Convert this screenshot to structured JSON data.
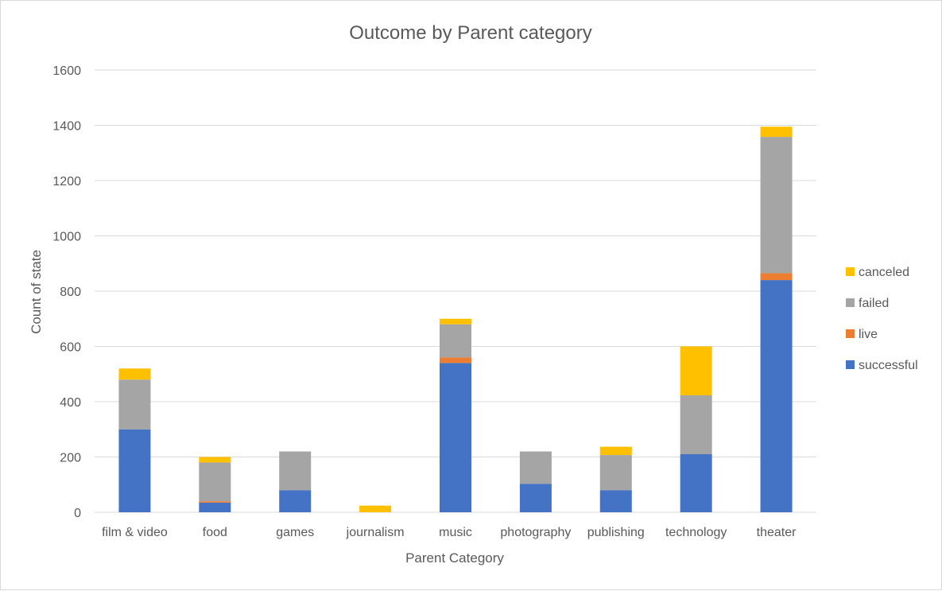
{
  "chart_data": {
    "type": "bar",
    "stacked": true,
    "title": "Outcome by Parent category",
    "xlabel": "Parent Category",
    "ylabel": "Count of state",
    "ylim": [
      0,
      1600
    ],
    "ytick_step": 200,
    "grid": true,
    "legend_position": "right",
    "categories": [
      "film & video",
      "food",
      "games",
      "journalism",
      "music",
      "photography",
      "publishing",
      "technology",
      "theater"
    ],
    "series": [
      {
        "name": "successful",
        "color": "#4472C4",
        "values": [
          300,
          35,
          80,
          0,
          540,
          103,
          80,
          210,
          840
        ]
      },
      {
        "name": "live",
        "color": "#ED7D31",
        "values": [
          0,
          5,
          0,
          0,
          20,
          0,
          0,
          0,
          25
        ]
      },
      {
        "name": "failed",
        "color": "#A5A5A5",
        "values": [
          180,
          140,
          140,
          0,
          120,
          117,
          127,
          213,
          493
        ]
      },
      {
        "name": "canceled",
        "color": "#FFC000",
        "values": [
          40,
          20,
          0,
          24,
          20,
          0,
          30,
          177,
          37
        ]
      }
    ]
  }
}
